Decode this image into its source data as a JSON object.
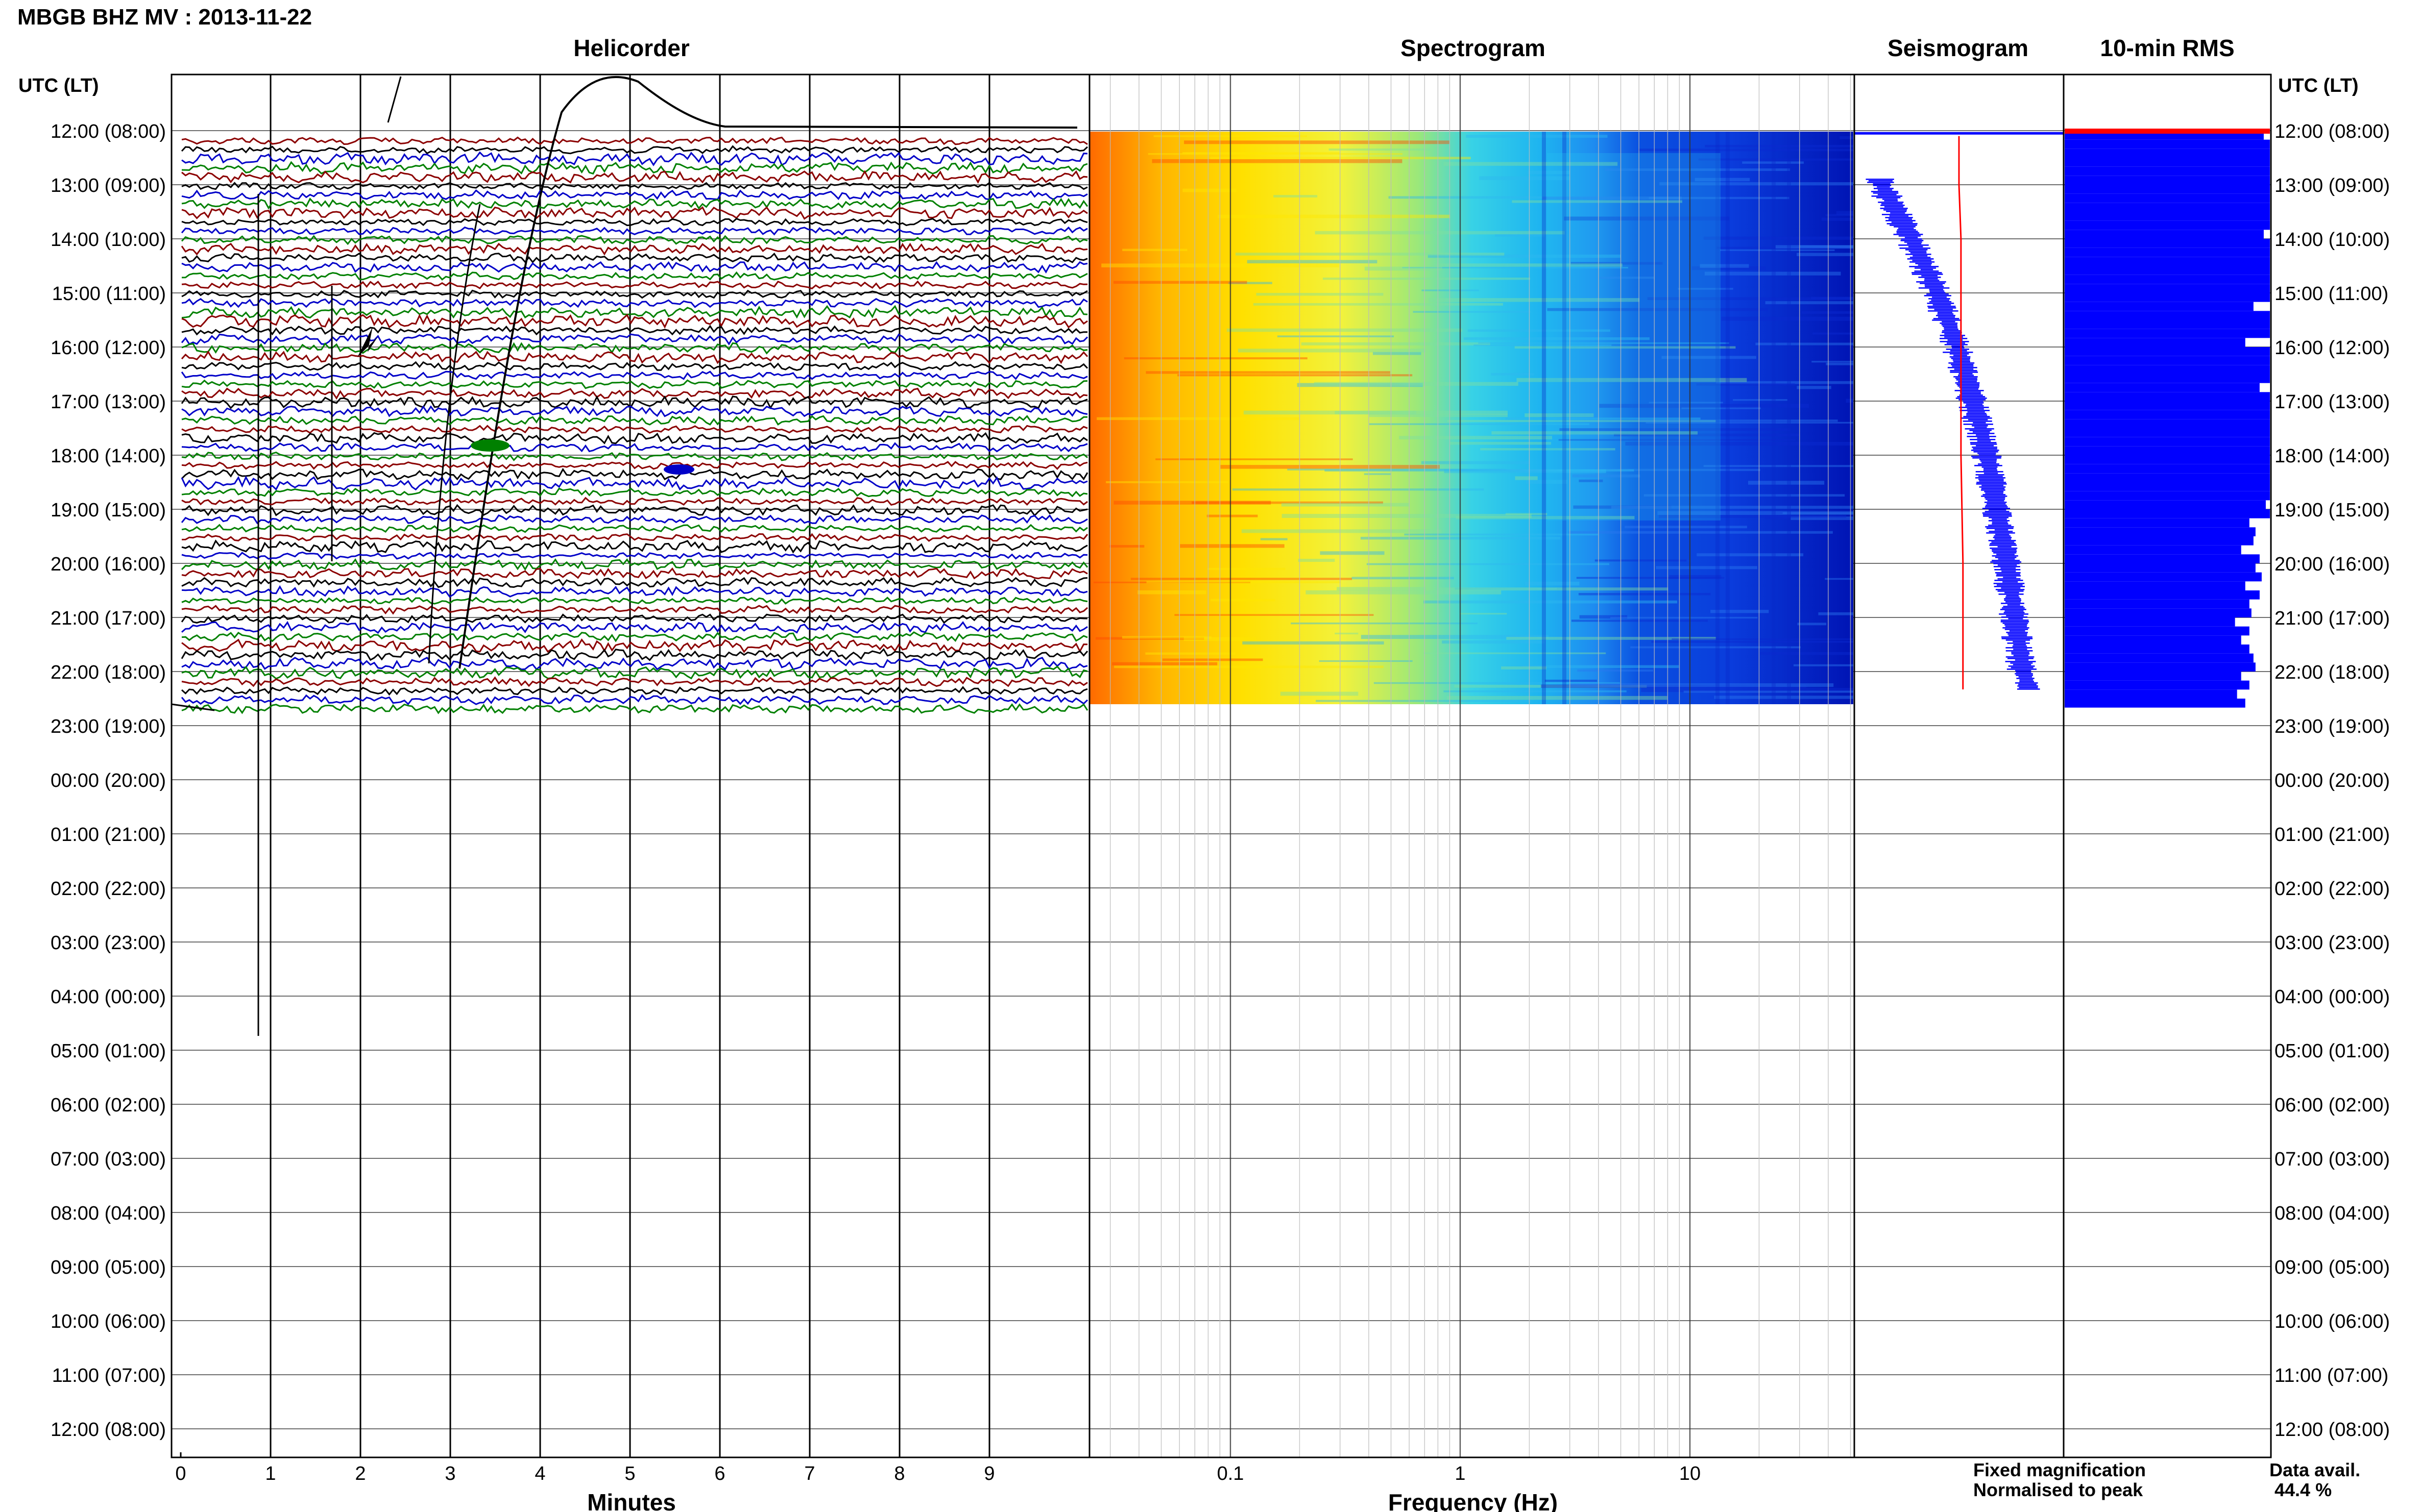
{
  "header": {
    "station_title": "MBGB BHZ MV : 2013-11-22"
  },
  "panels": {
    "helicorder_title": "Helicorder",
    "spectrogram_title": "Spectrogram",
    "seismogram_title": "Seismogram",
    "rms_title": "10-min RMS"
  },
  "axes": {
    "left_label": "UTC (LT)",
    "right_label": "UTC (LT)",
    "time_labels": [
      "12:00 (08:00)",
      "13:00 (09:00)",
      "14:00 (10:00)",
      "15:00 (11:00)",
      "16:00 (12:00)",
      "17:00 (13:00)",
      "18:00 (14:00)",
      "19:00 (15:00)",
      "20:00 (16:00)",
      "21:00 (17:00)",
      "22:00 (18:00)",
      "23:00 (19:00)",
      "00:00 (20:00)",
      "01:00 (21:00)",
      "02:00 (22:00)",
      "03:00 (23:00)",
      "04:00 (00:00)",
      "05:00 (01:00)",
      "06:00 (02:00)",
      "07:00 (03:00)",
      "08:00 (04:00)",
      "09:00 (05:00)",
      "10:00 (06:00)",
      "11:00 (07:00)",
      "12:00 (08:00)"
    ],
    "minutes_ticks": [
      "0",
      "1",
      "2",
      "3",
      "4",
      "5",
      "6",
      "7",
      "8",
      "9"
    ],
    "minutes_label": "Minutes",
    "freq_ticks": [
      "0.1",
      "1",
      "10"
    ],
    "freq_label": "Frequency (Hz)"
  },
  "legend": {
    "fixed_label": "Fixed magnification",
    "fixed_color": "#0000ff",
    "normalised_label": "Normalised to peak",
    "normalised_color": "#ff0000"
  },
  "availability": {
    "label": "Data avail.",
    "value": "44.4 %"
  },
  "chart_data": [
    {
      "type": "line",
      "name": "helicorder",
      "x_unit": "minutes",
      "xlim": [
        0,
        10
      ],
      "y_unit": "UTC time",
      "ylim": [
        "12:00",
        "12:00 next day"
      ],
      "row_interval_min": 10,
      "trace_colors": [
        "#8b0000",
        "#000000",
        "#0000c8",
        "#008000"
      ],
      "data_coverage_utc": [
        "12:00",
        "22:40"
      ],
      "grid": true
    },
    {
      "type": "heatmap",
      "name": "spectrogram",
      "x_scale": "log",
      "xlim_hz": [
        0.03,
        50
      ],
      "colormap": [
        "#ff6a00",
        "#ffd400",
        "#f2f23c",
        "#9be87a",
        "#38d2e6",
        "#1e8cf0",
        "#0a3cdc",
        "#0014b4"
      ],
      "data_coverage_utc": [
        "12:00",
        "22:40"
      ]
    },
    {
      "type": "line",
      "name": "seismogram",
      "series": [
        {
          "name": "Fixed magnification",
          "color": "#0000ff",
          "hours_utc": [
            12.1,
            13,
            14,
            15,
            16,
            17,
            18,
            19,
            20,
            21,
            22,
            22.33
          ],
          "relative_amplitude": [
            0.08,
            0.12,
            0.27,
            0.4,
            0.5,
            0.58,
            0.65,
            0.7,
            0.75,
            0.79,
            0.83,
            0.86
          ]
        },
        {
          "name": "Normalised to peak",
          "color": "#ff0000",
          "hours_utc": [
            12.1,
            13,
            14,
            16,
            18,
            20,
            22,
            22.33
          ],
          "relative_amplitude": [
            0.5,
            0.5,
            0.51,
            0.51,
            0.51,
            0.52,
            0.52,
            0.52
          ]
        }
      ]
    },
    {
      "type": "bar",
      "name": "10-min RMS",
      "orientation": "horizontal",
      "bar_color": "#0000ff",
      "start_utc": "12:00",
      "interval_min": 10,
      "relative_values": [
        0.97,
        1,
        1,
        1,
        1,
        1,
        1,
        1,
        1,
        1,
        1,
        0.97,
        1,
        1,
        1,
        1,
        1,
        1,
        1,
        0.92,
        1,
        1,
        1,
        0.88,
        1,
        1,
        1,
        1,
        0.95,
        1,
        1,
        1,
        1,
        1,
        1,
        1,
        1,
        1,
        1,
        1,
        1,
        0.98,
        1,
        0.9,
        0.93,
        0.92,
        0.86,
        0.95,
        0.93,
        0.96,
        0.88,
        0.95,
        0.9,
        0.91,
        0.83,
        0.9,
        0.86,
        0.9,
        0.92,
        0.93,
        0.86,
        0.9,
        0.84,
        0.88
      ],
      "top_bar_color": "#ff0000"
    }
  ]
}
